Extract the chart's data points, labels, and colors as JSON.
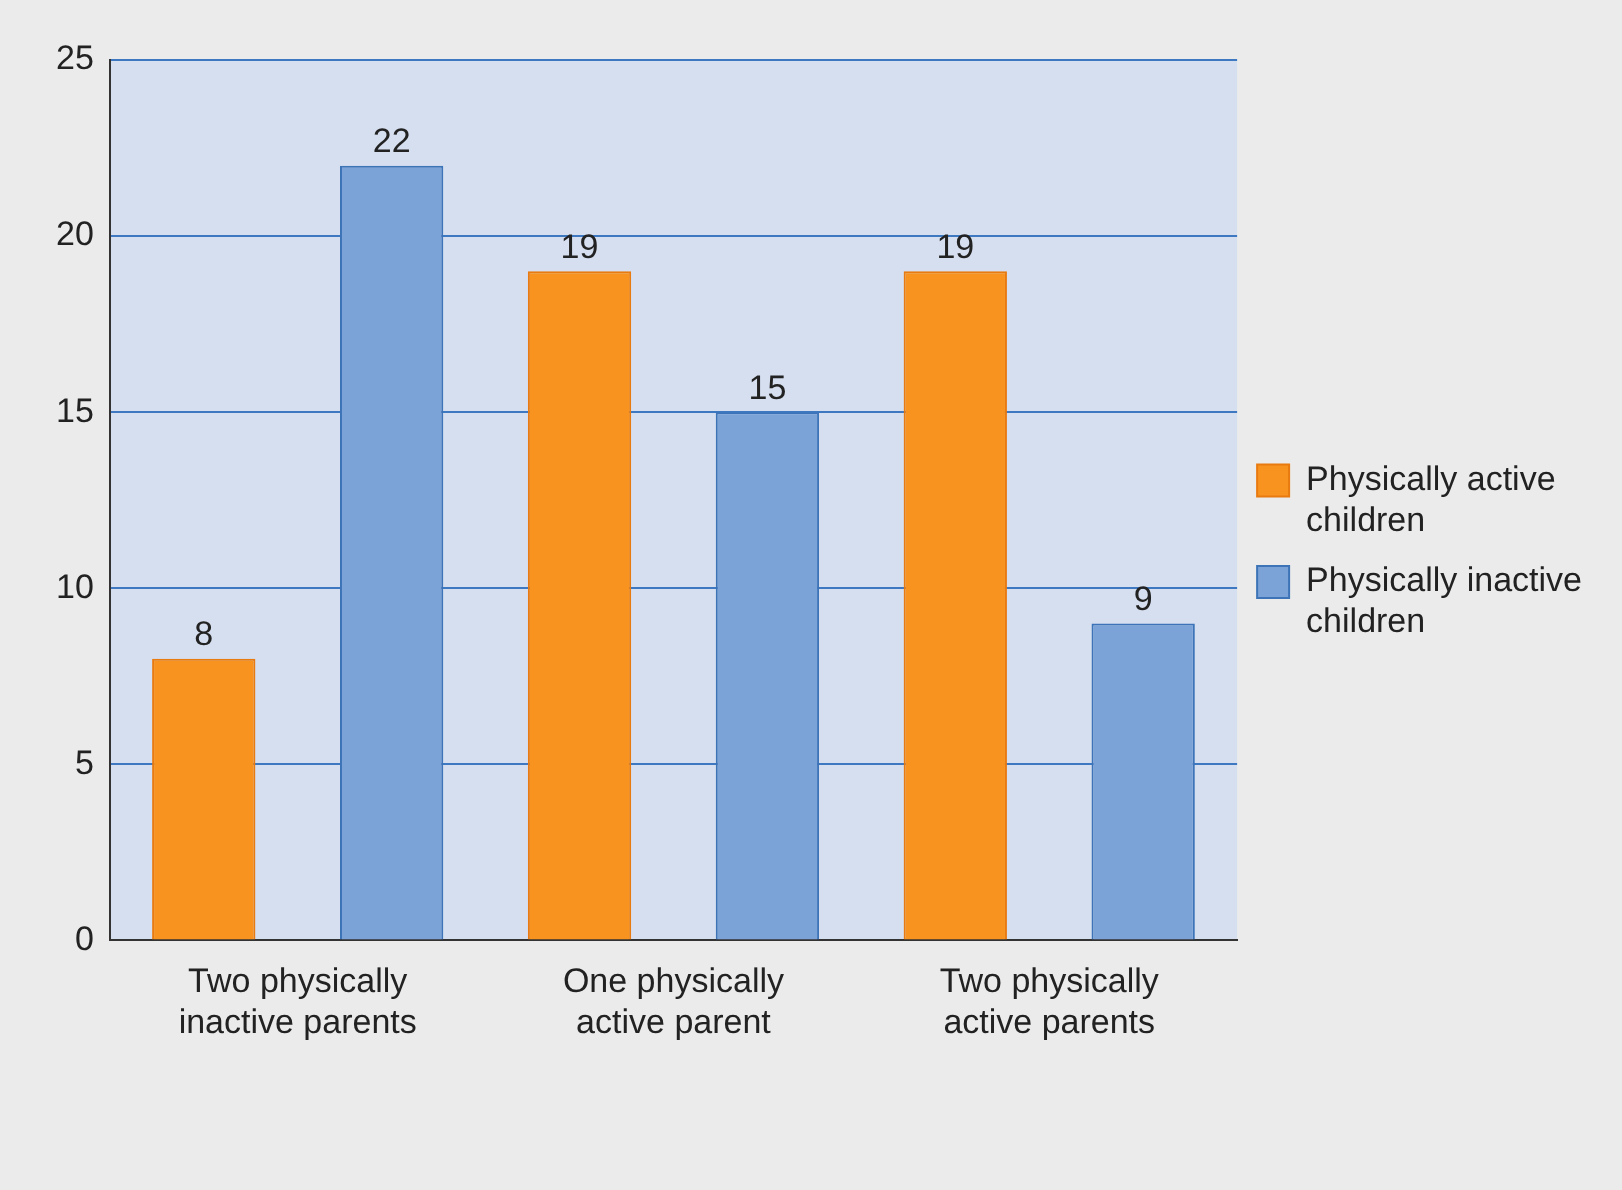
{
  "chart_data": {
    "type": "bar",
    "categories": [
      "Two physically inactive parents",
      "One physically active parent",
      "Two physically active parents"
    ],
    "series": [
      {
        "name": "Physically active children",
        "color": "#f7931e",
        "values": [
          8,
          19,
          19
        ]
      },
      {
        "name": "Physically inactive children",
        "color": "#7ba3d8",
        "values": [
          22,
          15,
          9
        ]
      }
    ],
    "ylim": [
      0,
      25
    ],
    "yticks": [
      0,
      5,
      10,
      15,
      20,
      25
    ],
    "grid": "y",
    "legend": "right",
    "data_labels": true
  }
}
